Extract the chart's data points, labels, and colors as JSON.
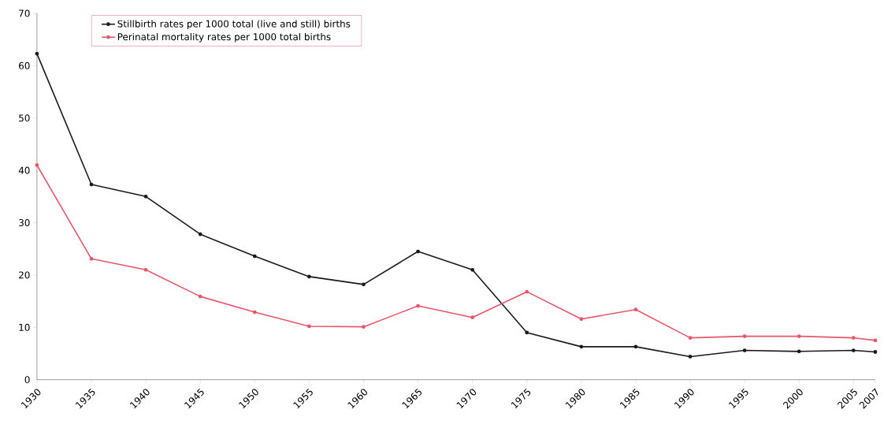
{
  "chart_data": {
    "type": "line",
    "x": [
      1930,
      1935,
      1940,
      1945,
      1950,
      1955,
      1960,
      1965,
      1970,
      1975,
      1980,
      1985,
      1990,
      1995,
      2000,
      2005,
      2007
    ],
    "series": [
      {
        "name": "Stillbirth rates per 1000 total (live and still) births",
        "color": "#1a1a1a",
        "values": [
          62.3,
          37.3,
          35.0,
          27.8,
          23.6,
          19.7,
          18.2,
          24.5,
          21.0,
          9.0,
          6.3,
          6.3,
          4.4,
          5.6,
          5.4,
          5.6,
          5.3
        ]
      },
      {
        "name": "Perinatal mortality rates per 1000 total births",
        "color": "#e8566a",
        "values": [
          41.0,
          23.1,
          21.0,
          15.9,
          12.9,
          10.2,
          10.1,
          14.1,
          11.9,
          16.8,
          11.6,
          13.4,
          8.0,
          8.3,
          8.3,
          8.0,
          7.5
        ]
      }
    ],
    "xlim": [
      1930,
      2007
    ],
    "xticks": [
      1930,
      1935,
      1940,
      1945,
      1950,
      1955,
      1960,
      1965,
      1970,
      1975,
      1980,
      1985,
      1990,
      1995,
      2000,
      2005,
      2007
    ],
    "ylim": [
      0,
      70
    ],
    "yticks": [
      0,
      10,
      20,
      30,
      40,
      50,
      60,
      70
    ],
    "grid": false,
    "legend": "top left",
    "marker": "circle",
    "line_style": "solid"
  }
}
